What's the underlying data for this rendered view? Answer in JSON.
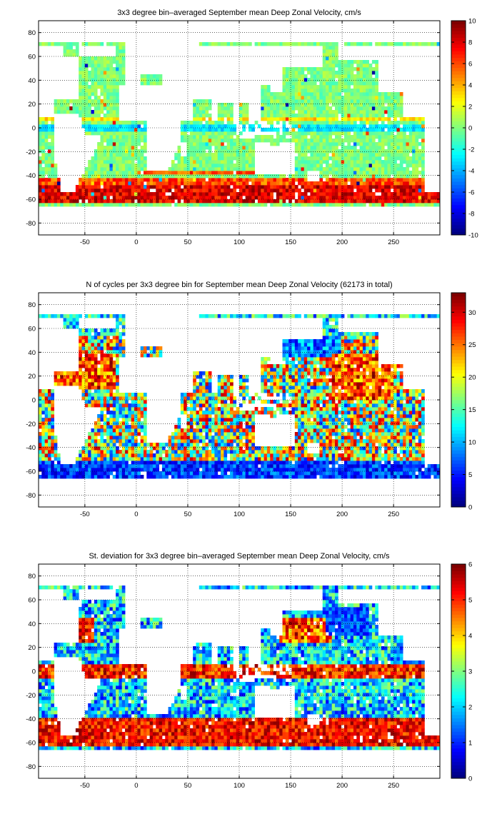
{
  "chart_data": [
    {
      "type": "heatmap",
      "title": "3x3 degree bin–averaged September mean Deep Zonal Velocity, cm/s",
      "xlim": [
        -95,
        295
      ],
      "ylim": [
        -90,
        90
      ],
      "xticks": [
        -50,
        0,
        50,
        100,
        150,
        200,
        250
      ],
      "yticks": [
        -80,
        -60,
        -40,
        -20,
        0,
        20,
        40,
        60,
        80
      ],
      "grid": true,
      "bin_size_deg": 3,
      "colorbar": {
        "min": -10,
        "max": 10,
        "ticks": [
          10,
          8,
          6,
          4,
          2,
          0,
          -2,
          -4,
          -6,
          -8,
          -10
        ],
        "colormap": "jet"
      },
      "pattern": "mostly near 0 (green/cyan); strong positive eastward band (6 to 10, red) along 45°S–65°S Antarctic Circumpolar Current; weak negative westward bands near equator"
    },
    {
      "type": "heatmap",
      "title": "N of cycles per 3x3 degree bin for September mean Deep Zonal Velocity (62173 in total)",
      "xlim": [
        -95,
        295
      ],
      "ylim": [
        -90,
        90
      ],
      "xticks": [
        -50,
        0,
        50,
        100,
        150,
        200,
        250
      ],
      "yticks": [
        -80,
        -60,
        -40,
        -20,
        0,
        20,
        40,
        60,
        80
      ],
      "grid": true,
      "bin_size_deg": 3,
      "total_cycles": 62173,
      "colorbar": {
        "min": 0,
        "max": 33,
        "ticks": [
          30,
          25,
          20,
          15,
          10,
          5,
          0
        ],
        "colormap": "jet"
      },
      "pattern": "high counts (20–33) in subtropical gyres of N Atlantic, S Atlantic, Indian and Pacific; low counts (0–10) in Southern Ocean and NW Pacific"
    },
    {
      "type": "heatmap",
      "title": "St. deviation for 3x3 degree bin–averaged September mean Deep Zonal Velocity, cm/s",
      "xlim": [
        -95,
        295
      ],
      "ylim": [
        -90,
        90
      ],
      "xticks": [
        -50,
        0,
        50,
        100,
        150,
        200,
        250
      ],
      "yticks": [
        -80,
        -60,
        -40,
        -20,
        0,
        20,
        40,
        60,
        80
      ],
      "grid": true,
      "bin_size_deg": 3,
      "colorbar": {
        "min": 0,
        "max": 6,
        "ticks": [
          6,
          5,
          4,
          3,
          2,
          1,
          0
        ],
        "colormap": "jet"
      },
      "pattern": "high std (4–6) along equator, Gulf Stream/Kuroshio and Antarctic Circumpolar Current; low std (0–2) in NW Pacific interior"
    }
  ]
}
